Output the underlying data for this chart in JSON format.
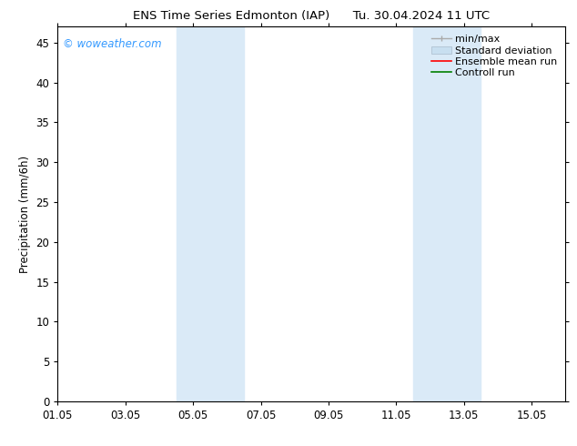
{
  "title": "ENS Time Series Edmonton (IAP)      Tu. 30.04.2024 11 UTC",
  "ylabel": "Precipitation (mm/6h)",
  "xlabel": "",
  "ylim": [
    0,
    47
  ],
  "yticks": [
    0,
    5,
    10,
    15,
    20,
    25,
    30,
    35,
    40,
    45
  ],
  "xtick_labels": [
    "01.05",
    "03.05",
    "05.05",
    "07.05",
    "09.05",
    "11.05",
    "13.05",
    "15.05"
  ],
  "xtick_positions": [
    0,
    2,
    4,
    6,
    8,
    10,
    12,
    14
  ],
  "xlim": [
    0,
    15
  ],
  "shaded_bands": [
    {
      "x_start": 3.5,
      "x_end": 5.5
    },
    {
      "x_start": 10.5,
      "x_end": 12.5
    }
  ],
  "shaded_color": "#daeaf7",
  "watermark_text": "© woweather.com",
  "watermark_color": "#3399ff",
  "legend_labels": [
    "min/max",
    "Standard deviation",
    "Ensemble mean run",
    "Controll run"
  ],
  "legend_colors": [
    "#aaaaaa",
    "#c8dff0",
    "red",
    "green"
  ],
  "bg_color": "#ffffff",
  "plot_bg_color": "#ffffff",
  "border_color": "#000000",
  "tick_color": "#000000",
  "font_size": 8.5,
  "title_font_size": 9.5
}
